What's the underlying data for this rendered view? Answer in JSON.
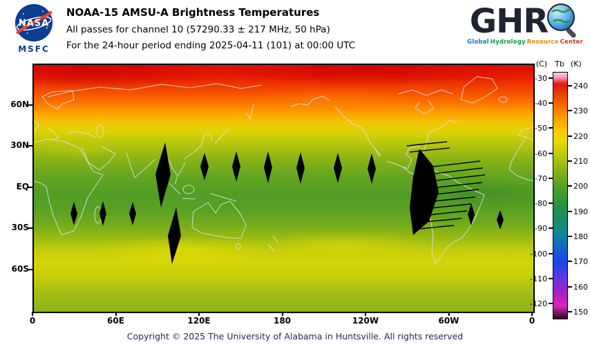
{
  "header": {
    "nasa_logo": {
      "text": "NASA",
      "agency_center": "MSFC"
    },
    "title": "NOAA-15 AMSU-A Brightness Temperatures",
    "subtitle_channel": "All passes for channel 10 (57290.33 ± 217 MHz, 50 hPa)",
    "subtitle_period": "For the 24-hour period ending 2025-04-11 (101) at 00:00 UTC",
    "ghrc_logo": {
      "letters": "GHR",
      "tagline": "Global Hydrology Resource Center",
      "tagline_words": [
        {
          "text": "Global",
          "color": "#0a7cc2"
        },
        {
          "text": "Hydrology",
          "color": "#0aa04e"
        },
        {
          "text": "Resource",
          "color": "#e88a0a"
        },
        {
          "text": "Center",
          "color": "#d2341e"
        }
      ]
    }
  },
  "map": {
    "y_ticks": [
      {
        "label": "60N",
        "lat": 60
      },
      {
        "label": "30N",
        "lat": 30
      },
      {
        "label": "EQ",
        "lat": 0
      },
      {
        "label": "30S",
        "lat": -30
      },
      {
        "label": "60S",
        "lat": -60
      }
    ],
    "x_ticks": [
      {
        "label": "0",
        "lon": 0
      },
      {
        "label": "60E",
        "lon": 60
      },
      {
        "label": "120E",
        "lon": 120
      },
      {
        "label": "180",
        "lon": 180
      },
      {
        "label": "120W",
        "lon": 240
      },
      {
        "label": "60W",
        "lon": 300
      },
      {
        "label": "0",
        "lon": 360
      }
    ],
    "gaps": {
      "polygons": [
        [
          [
            190,
            112
          ],
          [
            198,
            158
          ],
          [
            184,
            206
          ],
          [
            176,
            158
          ]
        ],
        [
          [
            247,
            127
          ],
          [
            253,
            147
          ],
          [
            247,
            167
          ],
          [
            241,
            147
          ]
        ],
        [
          [
            293,
            125
          ],
          [
            299,
            147
          ],
          [
            293,
            169
          ],
          [
            287,
            147
          ]
        ],
        [
          [
            339,
            125
          ],
          [
            345,
            148
          ],
          [
            339,
            171
          ],
          [
            333,
            148
          ]
        ],
        [
          [
            386,
            126
          ],
          [
            392,
            149
          ],
          [
            386,
            172
          ],
          [
            380,
            149
          ]
        ],
        [
          [
            440,
            127
          ],
          [
            446,
            149
          ],
          [
            440,
            171
          ],
          [
            434,
            149
          ]
        ],
        [
          [
            489,
            128
          ],
          [
            495,
            150
          ],
          [
            489,
            172
          ],
          [
            483,
            150
          ]
        ],
        [
          [
            58,
            198
          ],
          [
            63,
            215
          ],
          [
            58,
            232
          ],
          [
            53,
            215
          ]
        ],
        [
          [
            100,
            197
          ],
          [
            105,
            215
          ],
          [
            100,
            233
          ],
          [
            95,
            215
          ]
        ],
        [
          [
            143,
            198
          ],
          [
            148,
            215
          ],
          [
            143,
            232
          ],
          [
            138,
            215
          ]
        ],
        [
          [
            206,
            206
          ],
          [
            213,
            247
          ],
          [
            200,
            288
          ],
          [
            194,
            247
          ]
        ],
        [
          [
            633,
            200
          ],
          [
            638,
            216
          ],
          [
            633,
            232
          ],
          [
            628,
            216
          ]
        ],
        [
          [
            675,
            210
          ],
          [
            680,
            224
          ],
          [
            675,
            238
          ],
          [
            670,
            224
          ]
        ],
        [
          [
            558,
            121
          ],
          [
            578,
            146
          ],
          [
            586,
            184
          ],
          [
            572,
            226
          ],
          [
            549,
            246
          ],
          [
            544,
            206
          ],
          [
            549,
            162
          ]
        ]
      ],
      "streaks": [
        [
          578,
          147,
          646,
          139
        ],
        [
          581,
          157,
          650,
          149
        ],
        [
          583,
          167,
          653,
          159
        ],
        [
          584,
          177,
          649,
          170
        ],
        [
          583,
          187,
          644,
          180
        ],
        [
          580,
          197,
          639,
          191
        ],
        [
          576,
          207,
          633,
          201
        ],
        [
          571,
          217,
          627,
          211
        ],
        [
          566,
          227,
          619,
          222
        ],
        [
          559,
          237,
          608,
          232
        ],
        [
          540,
          117,
          598,
          111
        ],
        [
          544,
          126,
          602,
          120
        ]
      ]
    }
  },
  "colorbar": {
    "unit_c": "(C)",
    "unit_tb": "Tb",
    "unit_k": "(K)",
    "ticks_c": [
      -30,
      -40,
      -50,
      -60,
      -70,
      -80,
      -90,
      -100,
      -110,
      -120
    ],
    "ticks_k": [
      240,
      230,
      220,
      210,
      200,
      190,
      180,
      170,
      160,
      150
    ],
    "stops": [
      [
        0,
        "#f8cfe0"
      ],
      [
        2,
        "#f4a0b8"
      ],
      [
        4,
        "#e8302a"
      ],
      [
        5,
        "#e01810"
      ],
      [
        10,
        "#ee4c00"
      ],
      [
        15,
        "#f97c00"
      ],
      [
        19,
        "#ffa400"
      ],
      [
        24,
        "#fbc903"
      ],
      [
        28,
        "#e8da05"
      ],
      [
        33,
        "#c0cc0b"
      ],
      [
        39,
        "#8fb614"
      ],
      [
        45,
        "#5ca41f"
      ],
      [
        50,
        "#3b9930"
      ],
      [
        55,
        "#259046"
      ],
      [
        60,
        "#158c68"
      ],
      [
        64,
        "#0e8a8a"
      ],
      [
        68,
        "#1179ae"
      ],
      [
        72,
        "#155fd0"
      ],
      [
        77,
        "#1c45e8"
      ],
      [
        81,
        "#4040ee"
      ],
      [
        84,
        "#6a35e0"
      ],
      [
        87,
        "#8c28d0"
      ],
      [
        91,
        "#b81ec0"
      ],
      [
        95,
        "#d428b4"
      ],
      [
        98,
        "#6e1460"
      ],
      [
        100,
        "#2a0826"
      ]
    ]
  },
  "footer": {
    "copyright": "Copyright © 2025 The University of Alabama in Huntsville. All rights reserved"
  },
  "chart_data": {
    "type": "heatmap",
    "title": "NOAA-15 AMSU-A Brightness Temperatures",
    "subtitle": "All passes for channel 10 (57290.33 ± 217 MHz, 50 hPa)",
    "period": "24-hour period ending 2025-04-11 (101) at 00:00 UTC",
    "satellite": "NOAA-15",
    "instrument": "AMSU-A",
    "channel": 10,
    "frequency_mhz": "57290.33 ± 217",
    "pressure_level_hpa": 50,
    "projection": {
      "type": "equirectangular",
      "lon_range_deg_east": [
        0,
        360
      ],
      "lat_range": [
        90,
        -90
      ]
    },
    "xlabel_ticks": [
      "0",
      "60E",
      "120E",
      "180",
      "120W",
      "60W",
      "0"
    ],
    "ylabel_ticks": [
      "60N",
      "30N",
      "EQ",
      "30S",
      "60S"
    ],
    "colorbar": {
      "label_left_units": "(C)",
      "label_right_units": "Tb (K)",
      "ticks_c": [
        -30,
        -40,
        -50,
        -60,
        -70,
        -80,
        -90,
        -100,
        -110,
        -120
      ],
      "ticks_k": [
        240,
        230,
        220,
        210,
        200,
        190,
        180,
        170,
        160,
        150
      ],
      "displayed_range_k": [
        150,
        245
      ]
    },
    "zonal_mean_tb_k": [
      {
        "lat": 85,
        "tb": 237
      },
      {
        "lat": 70,
        "tb": 230
      },
      {
        "lat": 60,
        "tb": 224
      },
      {
        "lat": 50,
        "tb": 218
      },
      {
        "lat": 40,
        "tb": 214
      },
      {
        "lat": 30,
        "tb": 211
      },
      {
        "lat": 15,
        "tb": 207
      },
      {
        "lat": 0,
        "tb": 205
      },
      {
        "lat": -15,
        "tb": 206
      },
      {
        "lat": -30,
        "tb": 209
      },
      {
        "lat": -45,
        "tb": 214
      },
      {
        "lat": -55,
        "tb": 215
      },
      {
        "lat": -70,
        "tb": 211
      },
      {
        "lat": -85,
        "tb": 210
      }
    ],
    "data_gaps_note": "Black lens/diamond shaped regions of missing coverage between orbital swaths in the tropics and subtropics; largest gap with scan-line streaks near 70W over western South America",
    "legend_position": "right",
    "grid": false
  }
}
